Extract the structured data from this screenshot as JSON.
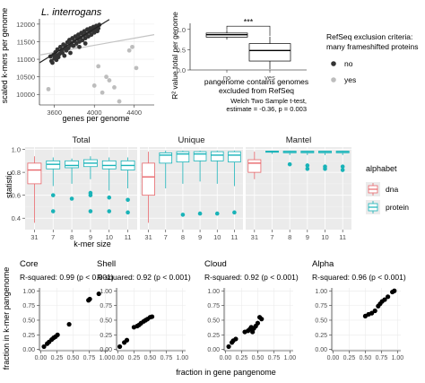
{
  "chart_data": [
    {
      "id": "scatter_kmers",
      "type": "scatter",
      "title": "L. interrogans",
      "xlabel": "genes per genome",
      "ylabel": "scaled k-mers per genome",
      "xlim": [
        3450,
        4600
      ],
      "ylim": [
        9700,
        12150
      ],
      "xticks": [
        3600,
        4000,
        4400
      ],
      "yticks": [
        10000,
        10500,
        11000,
        11500,
        12000
      ],
      "colors": {
        "excluded_no": "#333333",
        "excluded_yes": "#bdbdbd"
      },
      "fits": [
        {
          "group": "no",
          "x": [
            3450,
            4150
          ],
          "y": [
            10900,
            12130
          ]
        },
        {
          "group": "yes",
          "x": [
            3450,
            4600
          ],
          "y": [
            11120,
            11700
          ]
        }
      ],
      "series": [
        {
          "name": "no",
          "points": [
            [
              3560,
              11080
            ],
            [
              3570,
              10950
            ],
            [
              3580,
              10900
            ],
            [
              3590,
              11120
            ],
            [
              3600,
              11020
            ],
            [
              3610,
              11200
            ],
            [
              3620,
              11100
            ],
            [
              3630,
              11280
            ],
            [
              3640,
              11060
            ],
            [
              3650,
              11150
            ],
            [
              3660,
              11350
            ],
            [
              3670,
              11240
            ],
            [
              3680,
              11180
            ],
            [
              3690,
              11420
            ],
            [
              3700,
              11300
            ],
            [
              3710,
              11380
            ],
            [
              3720,
              11250
            ],
            [
              3730,
              11480
            ],
            [
              3740,
              11320
            ],
            [
              3750,
              11550
            ],
            [
              3760,
              11400
            ],
            [
              3770,
              11460
            ],
            [
              3780,
              11600
            ],
            [
              3790,
              11380
            ],
            [
              3800,
              11520
            ],
            [
              3810,
              11650
            ],
            [
              3820,
              11450
            ],
            [
              3830,
              11580
            ],
            [
              3840,
              11700
            ],
            [
              3850,
              11500
            ],
            [
              3860,
              11620
            ],
            [
              3870,
              11750
            ],
            [
              3880,
              11540
            ],
            [
              3890,
              11680
            ],
            [
              3900,
              11800
            ],
            [
              3910,
              11600
            ],
            [
              3920,
              11720
            ],
            [
              3930,
              11850
            ],
            [
              3940,
              11650
            ],
            [
              3950,
              11780
            ],
            [
              3960,
              11880
            ],
            [
              3970,
              11700
            ],
            [
              3980,
              11820
            ],
            [
              3990,
              11920
            ],
            [
              4000,
              11760
            ],
            [
              4010,
              11840
            ],
            [
              4020,
              11950
            ],
            [
              4030,
              11800
            ],
            [
              4040,
              11880
            ],
            [
              4050,
              11980
            ],
            [
              3620,
              10980
            ],
            [
              3700,
              11100
            ],
            [
              3760,
              11180
            ],
            [
              3850,
              11350
            ],
            [
              3910,
              11450
            ]
          ]
        },
        {
          "name": "yes",
          "points": [
            [
              3540,
              10150
            ],
            [
              3590,
              11120
            ],
            [
              3700,
              11250
            ],
            [
              3820,
              11380
            ],
            [
              4000,
              10250
            ],
            [
              4040,
              10800
            ],
            [
              4080,
              10050
            ],
            [
              4120,
              10500
            ],
            [
              4150,
              10400
            ],
            [
              4200,
              10200
            ],
            [
              4250,
              9800
            ],
            [
              4350,
              11250
            ],
            [
              4380,
              11350
            ],
            [
              4420,
              10750
            ]
          ]
        }
      ]
    },
    {
      "id": "boxplot_r2",
      "type": "boxplot",
      "ylabel": "R² value total per genome",
      "xlabel": "pangenome contains genomes\nexcluded from RefSeq",
      "categories": [
        "no",
        "yes"
      ],
      "ylim": [
        0.0,
        1.15
      ],
      "yticks": [
        0.0,
        0.5,
        1.0
      ],
      "boxes": [
        {
          "category": "no",
          "min": 0.75,
          "q1": 0.81,
          "median": 0.87,
          "q3": 0.91,
          "max": 0.98
        },
        {
          "category": "yes",
          "min": 0.02,
          "q1": 0.22,
          "median": 0.48,
          "q3": 0.65,
          "max": 0.82
        }
      ],
      "significance": "***",
      "note_line1": "Welch Two Sample t-test,",
      "note_line2": "estimate = -0.36, p = 0.003"
    },
    {
      "id": "legend_refseq",
      "title_line1": "RefSeq exclusion criteria:",
      "title_line2": "many frameshifted proteins",
      "items": [
        {
          "label": "no",
          "color": "#333333"
        },
        {
          "label": "yes",
          "color": "#bdbdbd"
        }
      ]
    },
    {
      "id": "boxplot_kmer",
      "type": "boxplot",
      "facets": [
        "Total",
        "Unique",
        "Mantel"
      ],
      "xlabel": "k-mer size",
      "ylabel": "statistic",
      "categories": [
        "31",
        "7",
        "8",
        "9",
        "10",
        "11"
      ],
      "ylim": [
        0.3,
        1.02
      ],
      "yticks": [
        0.4,
        0.6,
        0.8,
        1.0
      ],
      "colors": {
        "dna": "#e8676b",
        "protein": "#19b3b8"
      },
      "legend_title": "alphabet",
      "legend_items": [
        "dna",
        "protein"
      ],
      "data": {
        "Total": [
          {
            "k": "31",
            "alphabet": "dna",
            "min": 0.36,
            "q1": 0.7,
            "median": 0.82,
            "q3": 0.88,
            "max": 0.94,
            "outliers": []
          },
          {
            "k": "7",
            "alphabet": "protein",
            "min": 0.68,
            "q1": 0.83,
            "median": 0.87,
            "q3": 0.9,
            "max": 0.93,
            "outliers": [
              0.6,
              0.46
            ]
          },
          {
            "k": "8",
            "alphabet": "protein",
            "min": 0.7,
            "q1": 0.84,
            "median": 0.86,
            "q3": 0.9,
            "max": 0.92,
            "outliers": [
              0.57
            ]
          },
          {
            "k": "9",
            "alphabet": "protein",
            "min": 0.74,
            "q1": 0.85,
            "median": 0.88,
            "q3": 0.91,
            "max": 0.94,
            "outliers": [
              0.62,
              0.6,
              0.46
            ]
          },
          {
            "k": "10",
            "alphabet": "protein",
            "min": 0.64,
            "q1": 0.83,
            "median": 0.86,
            "q3": 0.9,
            "max": 0.93,
            "outliers": [
              0.58,
              0.46
            ]
          },
          {
            "k": "11",
            "alphabet": "protein",
            "min": 0.66,
            "q1": 0.82,
            "median": 0.86,
            "q3": 0.9,
            "max": 0.93,
            "outliers": [
              0.56,
              0.45
            ]
          }
        ],
        "Unique": [
          {
            "k": "31",
            "alphabet": "dna",
            "min": 0.36,
            "q1": 0.6,
            "median": 0.76,
            "q3": 0.88,
            "max": 0.98,
            "outliers": []
          },
          {
            "k": "7",
            "alphabet": "protein",
            "min": 0.66,
            "q1": 0.88,
            "median": 0.95,
            "q3": 0.97,
            "max": 0.99,
            "outliers": []
          },
          {
            "k": "8",
            "alphabet": "protein",
            "min": 0.7,
            "q1": 0.89,
            "median": 0.96,
            "q3": 0.98,
            "max": 0.99,
            "outliers": [
              0.43
            ]
          },
          {
            "k": "9",
            "alphabet": "protein",
            "min": 0.72,
            "q1": 0.9,
            "median": 0.96,
            "q3": 0.98,
            "max": 0.99,
            "outliers": [
              0.44
            ]
          },
          {
            "k": "10",
            "alphabet": "protein",
            "min": 0.7,
            "q1": 0.9,
            "median": 0.95,
            "q3": 0.98,
            "max": 0.99,
            "outliers": [
              0.44
            ]
          },
          {
            "k": "11",
            "alphabet": "protein",
            "min": 0.68,
            "q1": 0.89,
            "median": 0.95,
            "q3": 0.98,
            "max": 0.99,
            "outliers": [
              0.45
            ]
          }
        ],
        "Mantel": [
          {
            "k": "31",
            "alphabet": "dna",
            "min": 0.74,
            "q1": 0.8,
            "median": 0.88,
            "q3": 0.91,
            "max": 0.98,
            "outliers": []
          },
          {
            "k": "7",
            "alphabet": "protein",
            "min": 0.96,
            "q1": 0.975,
            "median": 0.98,
            "q3": 0.985,
            "max": 0.99,
            "outliers": []
          },
          {
            "k": "8",
            "alphabet": "protein",
            "min": 0.95,
            "q1": 0.97,
            "median": 0.98,
            "q3": 0.985,
            "max": 0.99,
            "outliers": [
              0.87
            ]
          },
          {
            "k": "9",
            "alphabet": "protein",
            "min": 0.95,
            "q1": 0.97,
            "median": 0.98,
            "q3": 0.985,
            "max": 0.99,
            "outliers": [
              0.86,
              0.83
            ]
          },
          {
            "k": "10",
            "alphabet": "protein",
            "min": 0.95,
            "q1": 0.97,
            "median": 0.98,
            "q3": 0.985,
            "max": 0.99,
            "outliers": [
              0.85,
              0.83
            ]
          },
          {
            "k": "11",
            "alphabet": "protein",
            "min": 0.95,
            "q1": 0.97,
            "median": 0.98,
            "q3": 0.985,
            "max": 0.99,
            "outliers": [
              0.85,
              0.82
            ]
          }
        ]
      }
    },
    {
      "id": "scatter_fraction",
      "type": "scatter",
      "xlabel": "fraction in gene pangenome",
      "ylabel": "fraction in k-mer pangenome",
      "xlim": [
        -0.02,
        1.05
      ],
      "ylim": [
        -0.02,
        1.05
      ],
      "xticks": [
        0.0,
        0.25,
        0.5,
        0.75,
        1.0
      ],
      "yticks": [
        0.0,
        0.25,
        0.5,
        0.75,
        1.0
      ],
      "xticklabels": [
        "0.00",
        "0.25",
        "0.50",
        "0.75",
        "1.00"
      ],
      "yticklabels": [
        "0.00",
        "0.25",
        "0.50",
        "0.75",
        "1.00"
      ],
      "facets": [
        {
          "title": "Core",
          "subtitle": "R-squared:  0.99 (p < 0.001)",
          "points": [
            [
              0.05,
              0.05
            ],
            [
              0.1,
              0.1
            ],
            [
              0.13,
              0.13
            ],
            [
              0.17,
              0.17
            ],
            [
              0.2,
              0.2
            ],
            [
              0.23,
              0.22
            ],
            [
              0.26,
              0.25
            ],
            [
              0.44,
              0.43
            ],
            [
              0.74,
              0.84
            ],
            [
              0.76,
              0.86
            ],
            [
              0.9,
              0.95
            ]
          ]
        },
        {
          "title": "Shell",
          "subtitle": "R-squared:  0.92 (p < 0.001)",
          "points": [
            [
              0.03,
              0.05
            ],
            [
              0.1,
              0.12
            ],
            [
              0.14,
              0.16
            ],
            [
              0.25,
              0.38
            ],
            [
              0.3,
              0.4
            ],
            [
              0.33,
              0.42
            ],
            [
              0.36,
              0.45
            ],
            [
              0.4,
              0.48
            ],
            [
              0.43,
              0.5
            ],
            [
              0.46,
              0.52
            ],
            [
              0.5,
              0.55
            ],
            [
              0.53,
              0.56
            ]
          ]
        },
        {
          "title": "Cloud",
          "subtitle": "R-squared:  0.92 (p < 0.001)",
          "points": [
            [
              0.05,
              0.05
            ],
            [
              0.1,
              0.12
            ],
            [
              0.12,
              0.15
            ],
            [
              0.16,
              0.18
            ],
            [
              0.3,
              0.3
            ],
            [
              0.35,
              0.32
            ],
            [
              0.38,
              0.35
            ],
            [
              0.4,
              0.38
            ],
            [
              0.42,
              0.3
            ],
            [
              0.44,
              0.36
            ],
            [
              0.47,
              0.4
            ],
            [
              0.5,
              0.45
            ],
            [
              0.53,
              0.55
            ],
            [
              0.56,
              0.52
            ]
          ]
        },
        {
          "title": "Alpha",
          "subtitle": "R-squared:  0.96 (p < 0.001)",
          "points": [
            [
              0.5,
              0.57
            ],
            [
              0.55,
              0.6
            ],
            [
              0.6,
              0.62
            ],
            [
              0.65,
              0.66
            ],
            [
              0.7,
              0.74
            ],
            [
              0.73,
              0.78
            ],
            [
              0.76,
              0.82
            ],
            [
              0.8,
              0.85
            ],
            [
              0.85,
              0.9
            ],
            [
              0.92,
              0.98
            ],
            [
              0.95,
              1.0
            ]
          ]
        }
      ]
    }
  ]
}
